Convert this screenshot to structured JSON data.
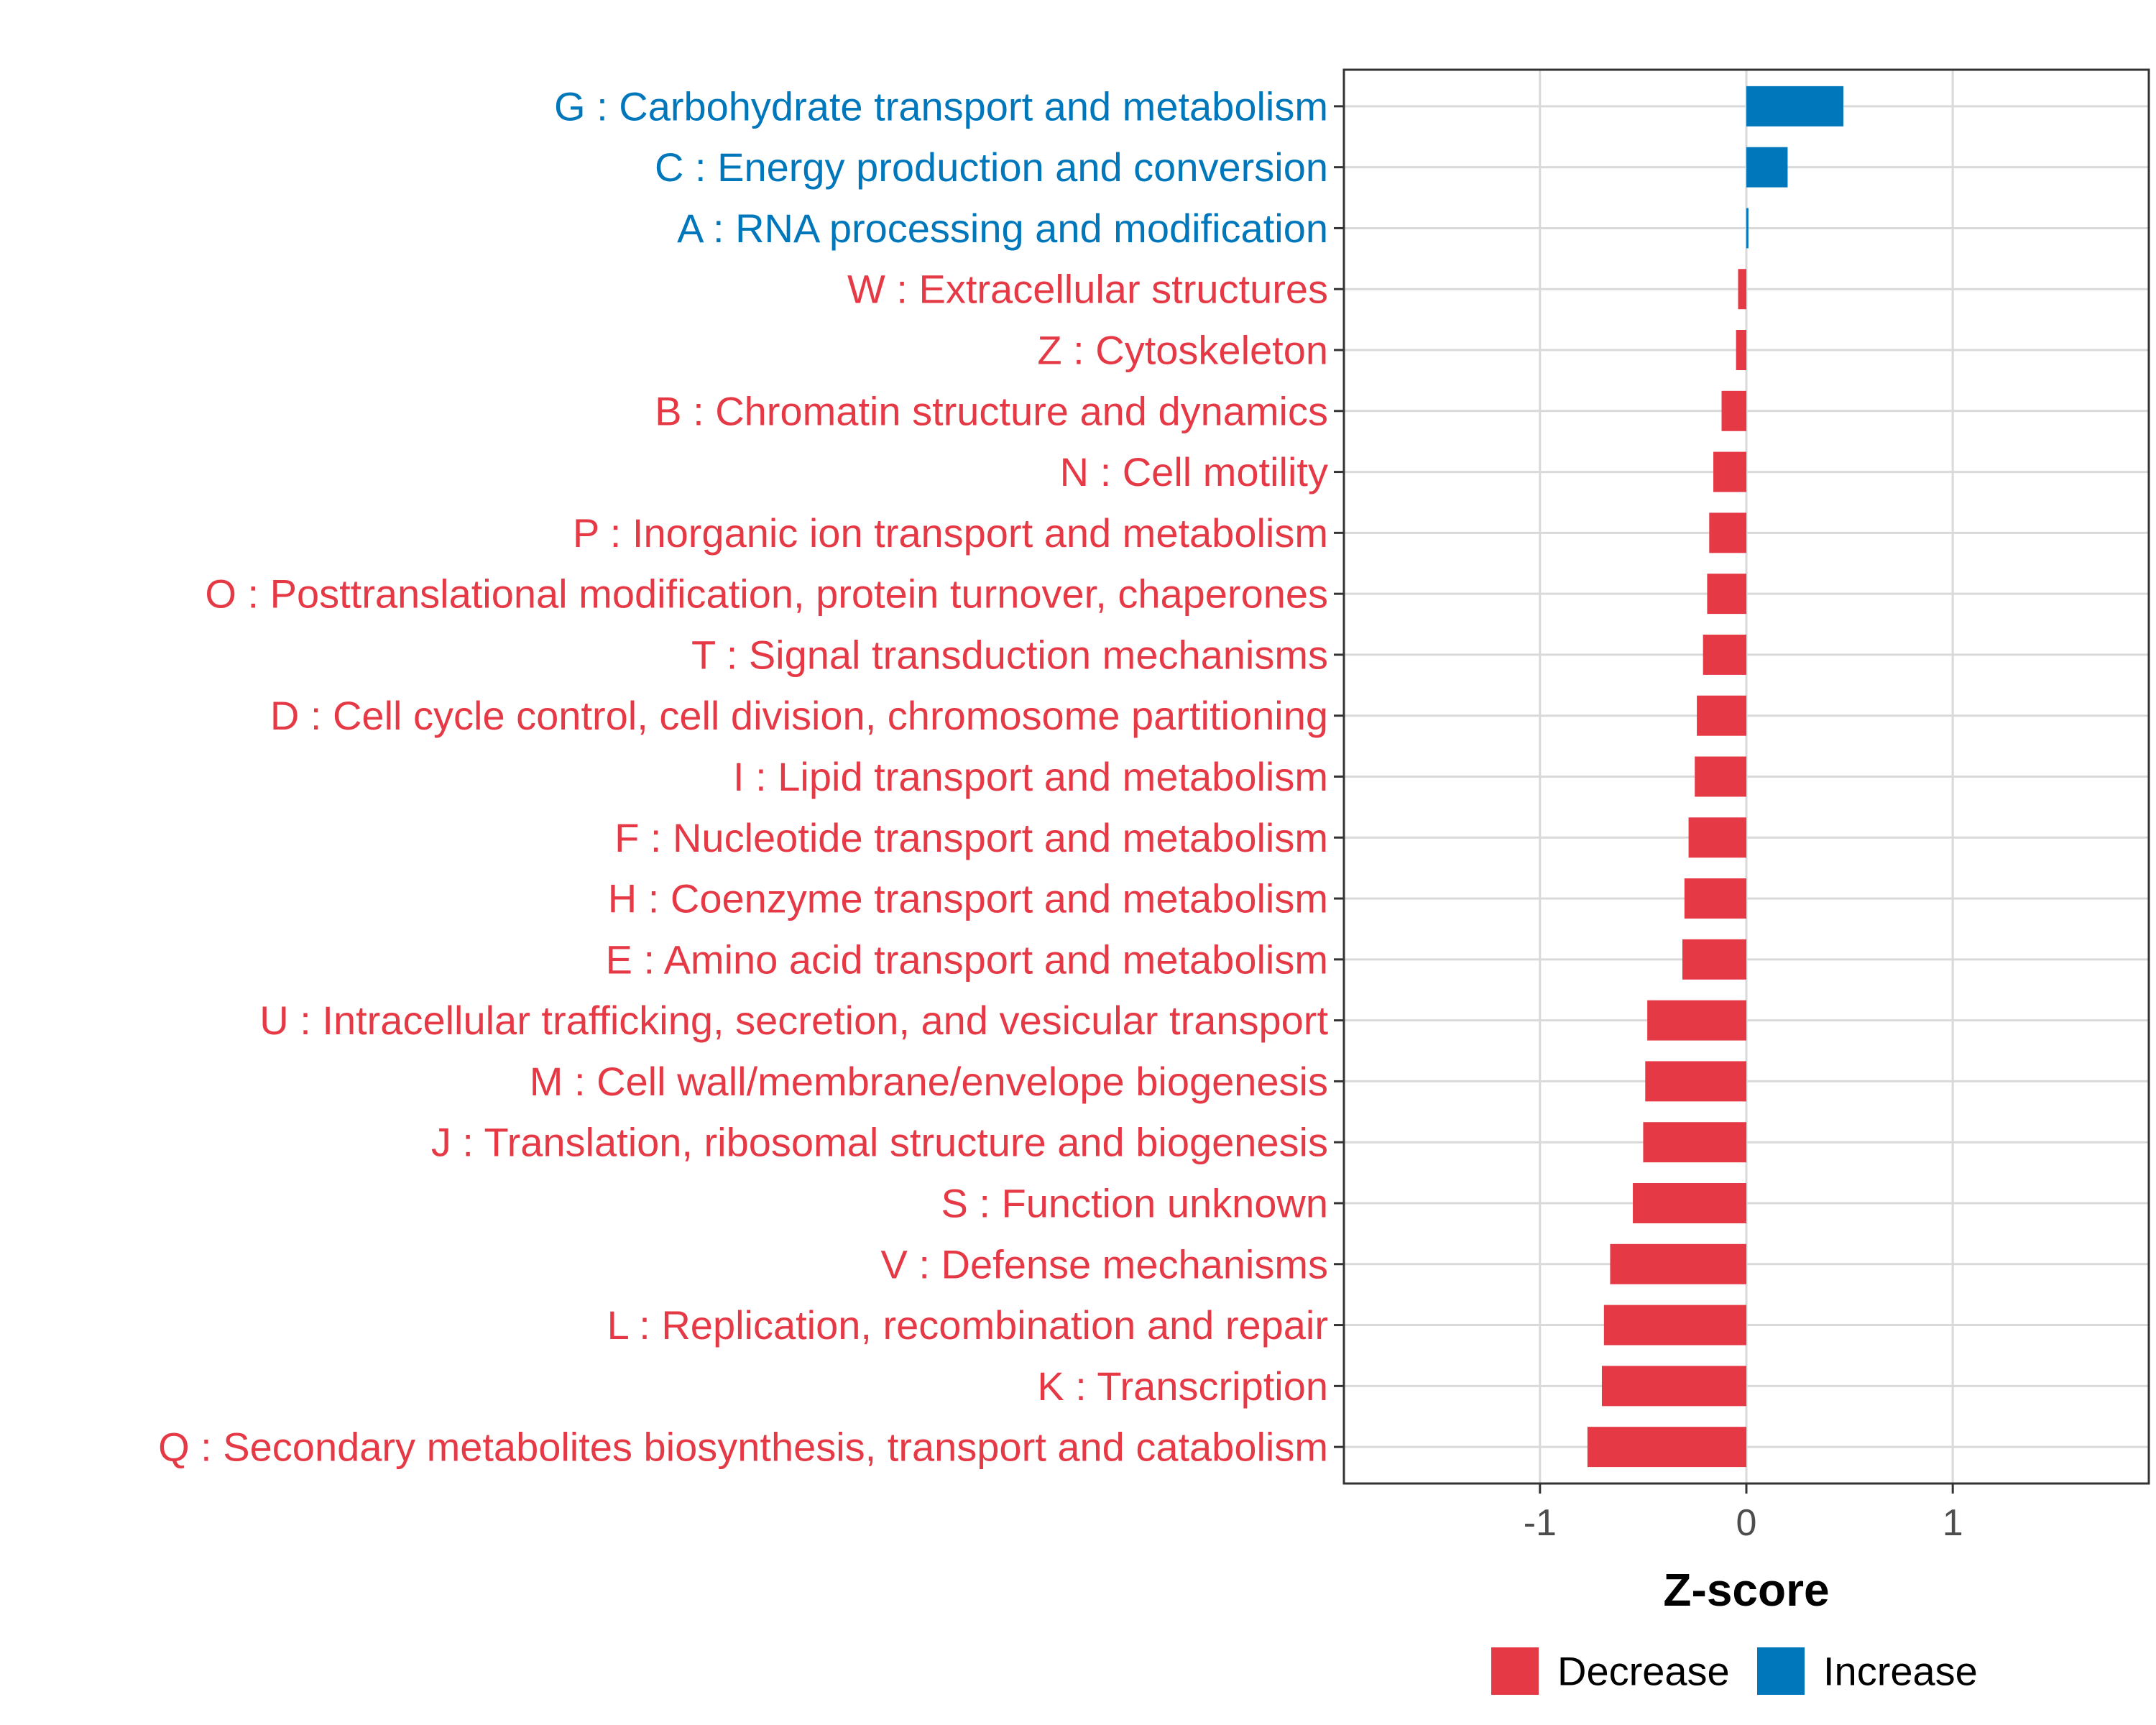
{
  "chart_data": {
    "type": "bar",
    "orientation": "horizontal",
    "categories": [
      "G : Carbohydrate transport and metabolism",
      "C : Energy production and conversion",
      "A : RNA processing and modification",
      "W : Extracellular structures",
      "Z : Cytoskeleton",
      "B : Chromatin structure and dynamics",
      "N : Cell motility",
      "P : Inorganic ion transport and metabolism",
      "O : Posttranslational modification, protein turnover, chaperones",
      "T : Signal transduction mechanisms",
      "D : Cell cycle control, cell division, chromosome partitioning",
      "I : Lipid transport and metabolism",
      "F : Nucleotide transport and metabolism",
      "H : Coenzyme transport and metabolism",
      "E : Amino acid transport and metabolism",
      "U : Intracellular trafficking, secretion, and vesicular transport",
      "M : Cell wall/membrane/envelope biogenesis",
      "J : Translation, ribosomal structure and biogenesis",
      "S : Function unknown",
      "V : Defense mechanisms",
      "L : Replication, recombination and repair",
      "K : Transcription",
      "Q : Secondary metabolites biosynthesis, transport and catabolism"
    ],
    "values": [
      0.47,
      0.2,
      0.01,
      -0.04,
      -0.05,
      -0.12,
      -0.16,
      -0.18,
      -0.19,
      -0.21,
      -0.24,
      -0.25,
      -0.28,
      -0.3,
      -0.31,
      -0.48,
      -0.49,
      -0.5,
      -0.55,
      -0.66,
      -0.69,
      -0.7,
      -0.77
    ],
    "groups": [
      "Increase",
      "Increase",
      "Increase",
      "Decrease",
      "Decrease",
      "Decrease",
      "Decrease",
      "Decrease",
      "Decrease",
      "Decrease",
      "Decrease",
      "Decrease",
      "Decrease",
      "Decrease",
      "Decrease",
      "Decrease",
      "Decrease",
      "Decrease",
      "Decrease",
      "Decrease",
      "Decrease",
      "Decrease",
      "Decrease"
    ],
    "title": "",
    "xlabel": "Z-score",
    "ylabel": "",
    "xlim": [
      -1.95,
      1.95
    ],
    "xticks": [
      -1,
      0,
      1
    ],
    "xtick_labels": [
      "-1",
      "0",
      "1"
    ],
    "grid": true,
    "legend": {
      "position": "bottom",
      "entries": [
        {
          "name": "Decrease",
          "color": "#E63946"
        },
        {
          "name": "Increase",
          "color": "#0077BB"
        }
      ]
    }
  },
  "colors": {
    "decrease": "#E63946",
    "increase": "#0077BB",
    "grid": "#d9d9d9",
    "panel_border": "#333333"
  }
}
